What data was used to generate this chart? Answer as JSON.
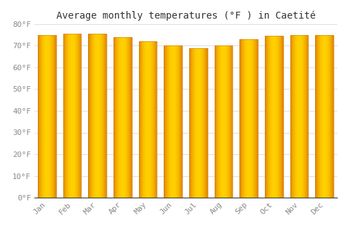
{
  "title": "Average monthly temperatures (°F ) in Caetité",
  "months": [
    "Jan",
    "Feb",
    "Mar",
    "Apr",
    "May",
    "Jun",
    "Jul",
    "Aug",
    "Sep",
    "Oct",
    "Nov",
    "Dec"
  ],
  "values": [
    75.0,
    75.5,
    75.5,
    74.0,
    72.0,
    70.0,
    69.0,
    70.0,
    73.0,
    74.5,
    75.0,
    75.0
  ],
  "ylim": [
    0,
    80
  ],
  "yticks": [
    0,
    10,
    20,
    30,
    40,
    50,
    60,
    70,
    80
  ],
  "ytick_labels": [
    "0°F",
    "10°F",
    "20°F",
    "30°F",
    "40°F",
    "50°F",
    "60°F",
    "70°F",
    "80°F"
  ],
  "bar_color_center": "#FFD000",
  "bar_color_edge": "#E08000",
  "bar_edge_color": "#CC7700",
  "background_color": "#FFFFFF",
  "grid_color": "#DDDDDD",
  "title_fontsize": 10,
  "tick_fontsize": 8,
  "tick_color": "#888888"
}
